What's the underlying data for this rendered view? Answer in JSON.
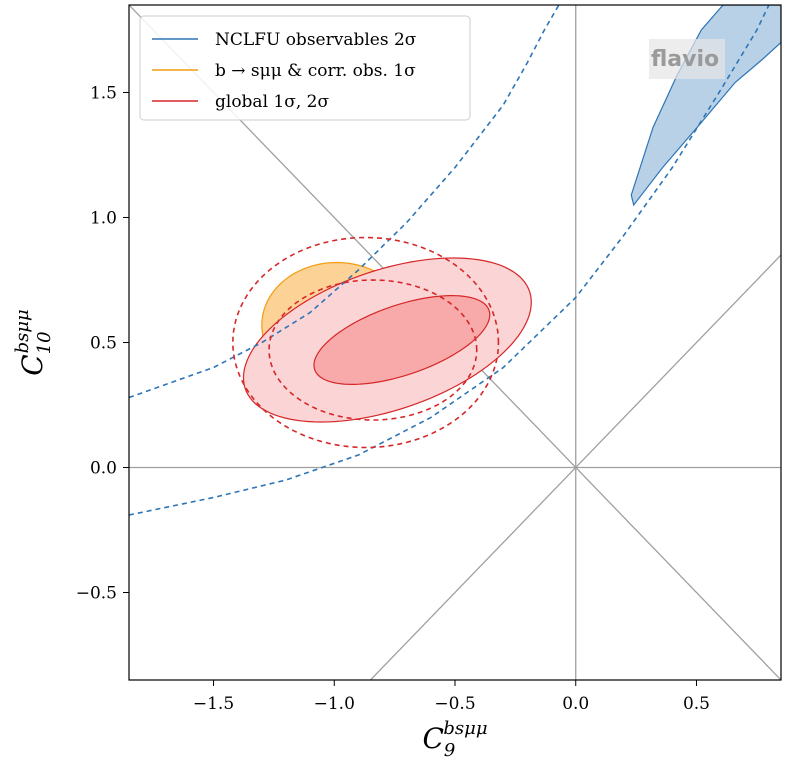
{
  "chart_data": {
    "type": "contour",
    "xlabel": {
      "base": "C",
      "sub": "9",
      "sup": "bsμμ"
    },
    "ylabel": {
      "base": "C",
      "sub": "10",
      "sup": "bsμμ"
    },
    "xlim": [
      -1.85,
      0.85
    ],
    "ylim": [
      -0.85,
      1.85
    ],
    "xticks": [
      -1.5,
      -1.0,
      -0.5,
      0.0,
      0.5
    ],
    "xtick_labels": [
      "−1.5",
      "−1.0",
      "−0.5",
      "0.0",
      "0.5"
    ],
    "yticks": [
      -0.5,
      0.0,
      0.5,
      1.0,
      1.5
    ],
    "ytick_labels": [
      "−0.5",
      "0.0",
      "0.5",
      "1.0",
      "1.5"
    ],
    "watermark": "flavio",
    "legend": {
      "position": "top-left",
      "entries": [
        {
          "label": "NCLFU observables 2σ",
          "color": "#2e75b6"
        },
        {
          "label": "b → sμμ & corr. obs. 1σ",
          "color": "#f39c12"
        },
        {
          "label": "global 1σ, 2σ",
          "color": "#d62728"
        }
      ]
    },
    "reference_lines": [
      {
        "name": "x-zero",
        "points": [
          [
            0.0,
            -0.85
          ],
          [
            0.0,
            1.85
          ]
        ]
      },
      {
        "name": "y-zero",
        "points": [
          [
            -1.85,
            0.0
          ],
          [
            0.85,
            0.0
          ]
        ]
      },
      {
        "name": "diagonal-c9-eq-minus-c10",
        "points": [
          [
            -1.85,
            1.85
          ],
          [
            0.85,
            -0.85
          ]
        ]
      },
      {
        "name": "diagonal-c9-eq-c10",
        "points": [
          [
            -0.85,
            -0.85
          ],
          [
            0.85,
            0.85
          ]
        ]
      }
    ],
    "series": [
      {
        "name": "NCLFU observables 2σ",
        "kind": "filled-contour",
        "fill": "#b8d1e6",
        "stroke": "#2e75b6",
        "points": [
          [
            0.24,
            1.05
          ],
          [
            0.36,
            1.2
          ],
          [
            0.52,
            1.38
          ],
          [
            0.66,
            1.54
          ],
          [
            0.77,
            1.63
          ],
          [
            0.85,
            1.7
          ],
          [
            0.85,
            1.85
          ],
          [
            0.61,
            1.85
          ],
          [
            0.52,
            1.75
          ],
          [
            0.42,
            1.57
          ],
          [
            0.32,
            1.36
          ],
          [
            0.23,
            1.09
          ]
        ]
      },
      {
        "name": "NCLFU dashed band upper",
        "kind": "dashed-curve",
        "stroke": "#2e75b6",
        "points": [
          [
            -1.85,
            0.28
          ],
          [
            -1.5,
            0.4
          ],
          [
            -1.3,
            0.5
          ],
          [
            -1.1,
            0.62
          ],
          [
            -0.9,
            0.79
          ],
          [
            -0.7,
            0.98
          ],
          [
            -0.5,
            1.2
          ],
          [
            -0.3,
            1.45
          ],
          [
            -0.2,
            1.62
          ],
          [
            -0.13,
            1.75
          ],
          [
            -0.07,
            1.85
          ]
        ]
      },
      {
        "name": "NCLFU dashed band lower",
        "kind": "dashed-curve",
        "stroke": "#2e75b6",
        "points": [
          [
            -1.85,
            -0.19
          ],
          [
            -1.5,
            -0.12
          ],
          [
            -1.2,
            -0.05
          ],
          [
            -0.9,
            0.05
          ],
          [
            -0.6,
            0.2
          ],
          [
            -0.3,
            0.4
          ],
          [
            0.0,
            0.68
          ],
          [
            0.2,
            0.93
          ],
          [
            0.4,
            1.2
          ],
          [
            0.6,
            1.51
          ],
          [
            0.75,
            1.75
          ],
          [
            0.8,
            1.85
          ]
        ]
      },
      {
        "name": "b → sμμ & corr. obs. 1σ",
        "kind": "ellipse",
        "fill": "#fdd296",
        "stroke": "#f39c12",
        "cx": -0.99,
        "cy": 0.57,
        "rx": 0.31,
        "ry": 0.25,
        "angle_deg": 0
      },
      {
        "name": "global 2σ",
        "kind": "ellipse",
        "fill": "#fbd5d5",
        "stroke": "#d62728",
        "cx": -0.78,
        "cy": 0.51,
        "rx": 0.62,
        "ry": 0.28,
        "angle_deg": 18
      },
      {
        "name": "global 1σ",
        "kind": "ellipse",
        "fill": "#f8aaaa",
        "stroke": "#d62728",
        "cx": -0.72,
        "cy": 0.51,
        "rx": 0.38,
        "ry": 0.14,
        "angle_deg": 18
      },
      {
        "name": "global dashed 2σ (alt)",
        "kind": "dashed-ellipse",
        "stroke": "#d62728",
        "cx": -0.87,
        "cy": 0.5,
        "rx": 0.55,
        "ry": 0.42,
        "angle_deg": 0
      },
      {
        "name": "global dashed 1σ (alt)",
        "kind": "dashed-ellipse",
        "stroke": "#d62728",
        "cx": -0.84,
        "cy": 0.47,
        "rx": 0.43,
        "ry": 0.28,
        "angle_deg": 0
      }
    ]
  }
}
